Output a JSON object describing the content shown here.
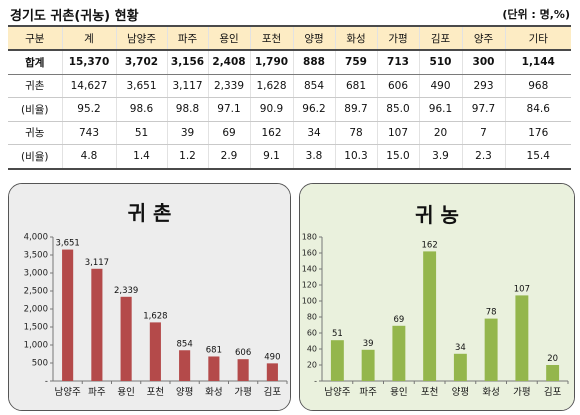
{
  "header": {
    "title": "경기도 귀촌(귀농) 현황",
    "unit": "(단위 : 명,%)"
  },
  "table": {
    "columns": [
      "구분",
      "계",
      "남양주",
      "파주",
      "용인",
      "포천",
      "양평",
      "화성",
      "가평",
      "김포",
      "양주",
      "기타"
    ],
    "rows": [
      {
        "label": "합계",
        "values": [
          "15,370",
          "3,702",
          "3,156",
          "2,408",
          "1,790",
          "888",
          "759",
          "713",
          "510",
          "300",
          "1,144"
        ]
      },
      {
        "label": "귀촌",
        "values": [
          "14,627",
          "3,651",
          "3,117",
          "2,339",
          "1,628",
          "854",
          "681",
          "606",
          "490",
          "293",
          "968"
        ]
      },
      {
        "label": "(비율)",
        "values": [
          "95.2",
          "98.6",
          "98.8",
          "97.1",
          "90.9",
          "96.2",
          "89.7",
          "85.0",
          "96.1",
          "97.7",
          "84.6"
        ]
      },
      {
        "label": "귀농",
        "values": [
          "743",
          "51",
          "39",
          "69",
          "162",
          "34",
          "78",
          "107",
          "20",
          "7",
          "176"
        ]
      },
      {
        "label": "(비율)",
        "values": [
          "4.8",
          "1.4",
          "1.2",
          "2.9",
          "9.1",
          "3.8",
          "10.3",
          "15.0",
          "3.9",
          "2.3",
          "15.4"
        ]
      }
    ]
  },
  "colors": {
    "table_header": "#fdecc4",
    "left_panel_bg": "#ededed",
    "right_panel_bg": "#eaf1dd",
    "bar_left": "#b44a4a",
    "bar_right": "#94b64c"
  },
  "chart_data": [
    {
      "type": "bar",
      "title": "귀 촌",
      "categories": [
        "남양주",
        "파주",
        "용인",
        "포천",
        "양평",
        "화성",
        "가평",
        "김포"
      ],
      "values": [
        3651,
        3117,
        2339,
        1628,
        854,
        681,
        606,
        490
      ],
      "value_labels": [
        "3,651",
        "3,117",
        "2,339",
        "1,628",
        "854",
        "681",
        "606",
        "490"
      ],
      "ylim": [
        0,
        4000
      ],
      "yticks": [
        0,
        500,
        1000,
        1500,
        2000,
        2500,
        3000,
        3500,
        4000
      ],
      "ytick_labels": [
        "-",
        "500",
        "1,000",
        "1,500",
        "2,000",
        "2,500",
        "3,000",
        "3,500",
        "4,000"
      ],
      "grid": false,
      "legend": "none"
    },
    {
      "type": "bar",
      "title": "귀 농",
      "categories": [
        "남양주",
        "파주",
        "용인",
        "포천",
        "양평",
        "화성",
        "가평",
        "김포"
      ],
      "values": [
        51,
        39,
        69,
        162,
        34,
        78,
        107,
        20
      ],
      "value_labels": [
        "51",
        "39",
        "69",
        "162",
        "34",
        "78",
        "107",
        "20"
      ],
      "ylim": [
        0,
        180
      ],
      "yticks": [
        0,
        20,
        40,
        60,
        80,
        100,
        120,
        140,
        160,
        180
      ],
      "ytick_labels": [
        "-",
        "20",
        "40",
        "60",
        "80",
        "100",
        "120",
        "140",
        "160",
        "180"
      ],
      "grid": false,
      "legend": "none"
    }
  ]
}
